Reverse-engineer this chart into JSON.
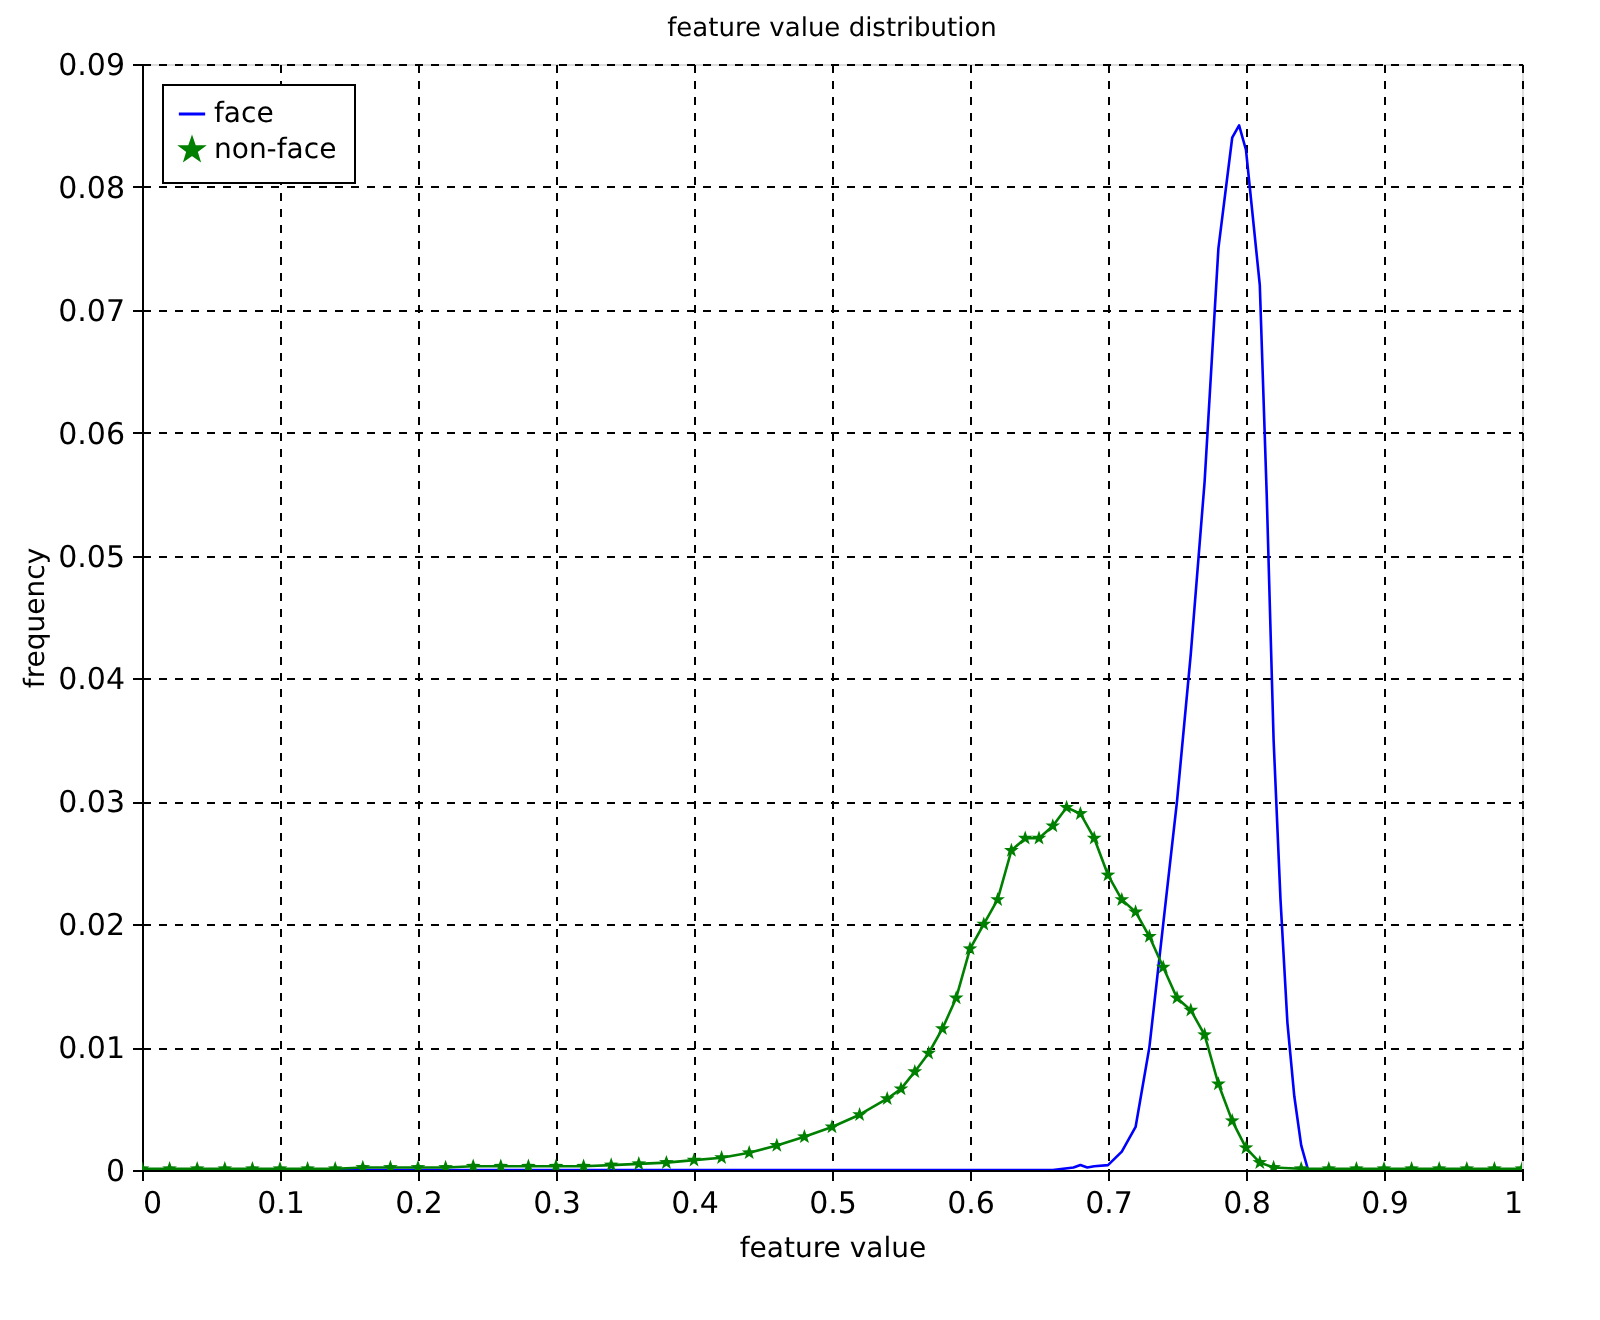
{
  "chart_data": {
    "type": "line",
    "title": "feature value distribution",
    "xlabel": "feature value",
    "ylabel": "frequency",
    "xlim": [
      0,
      1
    ],
    "ylim": [
      0,
      0.09
    ],
    "xticks": [
      0,
      0.1,
      0.2,
      0.3,
      0.4,
      0.5,
      0.6,
      0.7,
      0.8,
      0.9,
      1
    ],
    "yticks": [
      0,
      0.01,
      0.02,
      0.03,
      0.04,
      0.05,
      0.06,
      0.07,
      0.08,
      0.09
    ],
    "grid": true,
    "legend": "top left",
    "series": [
      {
        "name": "face",
        "color": "#0000ff",
        "marker": "none",
        "x": [
          0,
          0.66,
          0.675,
          0.68,
          0.685,
          0.69,
          0.7,
          0.71,
          0.72,
          0.73,
          0.74,
          0.75,
          0.76,
          0.77,
          0.78,
          0.79,
          0.795,
          0.8,
          0.81,
          0.815,
          0.82,
          0.825,
          0.83,
          0.835,
          0.84,
          0.845,
          1
        ],
        "values": [
          0,
          0,
          0.0002,
          0.0004,
          0.0002,
          0.0003,
          0.0004,
          0.0015,
          0.0035,
          0.01,
          0.02,
          0.03,
          0.042,
          0.056,
          0.075,
          0.084,
          0.085,
          0.083,
          0.072,
          0.055,
          0.035,
          0.022,
          0.012,
          0.006,
          0.002,
          0,
          0
        ]
      },
      {
        "name": "non-face",
        "color": "#008000",
        "marker": "star",
        "x": [
          0,
          0.02,
          0.04,
          0.06,
          0.08,
          0.1,
          0.12,
          0.14,
          0.16,
          0.18,
          0.2,
          0.22,
          0.24,
          0.26,
          0.28,
          0.3,
          0.32,
          0.34,
          0.36,
          0.38,
          0.4,
          0.42,
          0.44,
          0.46,
          0.48,
          0.5,
          0.52,
          0.54,
          0.55,
          0.56,
          0.57,
          0.58,
          0.59,
          0.6,
          0.61,
          0.62,
          0.63,
          0.64,
          0.65,
          0.66,
          0.67,
          0.68,
          0.69,
          0.7,
          0.71,
          0.72,
          0.73,
          0.74,
          0.75,
          0.76,
          0.77,
          0.78,
          0.79,
          0.8,
          0.81,
          0.82,
          0.84,
          0.86,
          0.88,
          0.9,
          0.92,
          0.94,
          0.96,
          0.98,
          1
        ],
        "values": [
          0.0001,
          0.0001,
          0.0001,
          0.0001,
          0.0001,
          0.0001,
          0.0001,
          0.0001,
          0.0002,
          0.0002,
          0.0002,
          0.0002,
          0.0003,
          0.0003,
          0.0003,
          0.0003,
          0.0003,
          0.0004,
          0.0005,
          0.0006,
          0.0008,
          0.001,
          0.0014,
          0.002,
          0.0027,
          0.0035,
          0.0045,
          0.0058,
          0.0066,
          0.008,
          0.0095,
          0.0115,
          0.014,
          0.018,
          0.02,
          0.022,
          0.026,
          0.027,
          0.027,
          0.028,
          0.0295,
          0.029,
          0.027,
          0.024,
          0.022,
          0.021,
          0.019,
          0.0165,
          0.014,
          0.013,
          0.011,
          0.007,
          0.004,
          0.0018,
          0.0006,
          0.0002,
          0.0001,
          0.0001,
          0.0001,
          0.0001,
          0.0001,
          0.0001,
          0.0001,
          0.0001,
          0.0001
        ]
      }
    ]
  }
}
